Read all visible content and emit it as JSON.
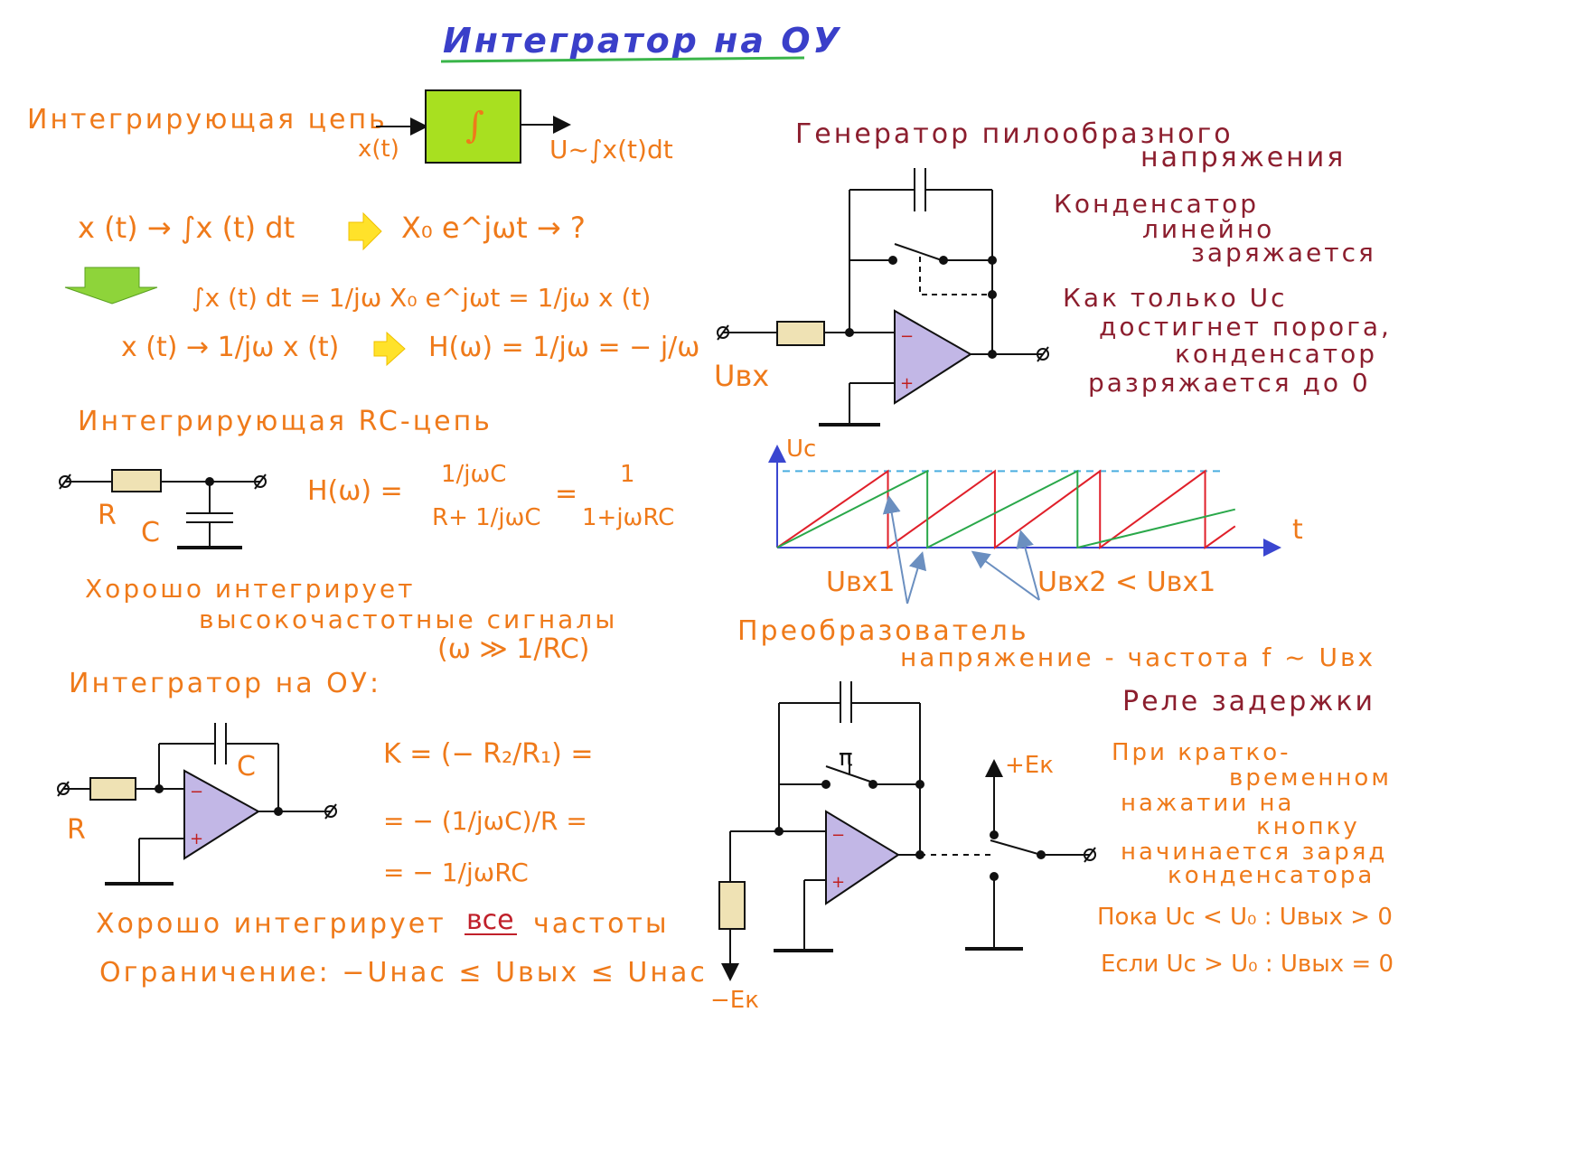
{
  "title": "Интегратор на ОУ",
  "left": {
    "integrating_chain": "Интегрирующая цепь",
    "block_symbol": "∫",
    "input": "x(t)",
    "output": "U~∫x(t)dt",
    "eq1": "x (t) → ∫x (t) dt",
    "eq1_rhs": "X₀ e^jωt → ?",
    "eq2": "∫x (t) dt = 1/jω X₀ e^jωt = 1/jω x (t)",
    "eq3": "x (t) → 1/jω x (t)",
    "eq3_rhs": "H(ω) = 1/jω = − j/ω",
    "rc_chain": "Интегрирующая RC-цепь",
    "r_label": "R",
    "c_label": "C",
    "h_rc_lhs": "H(ω) =",
    "h_rc_num": "1/jωC",
    "h_rc_den": "R+ 1/jωC",
    "h_rc_eq": "=",
    "h_rc_num2": "1",
    "h_rc_den2": "1+jωRC",
    "good1": "Хорошо интегрирует",
    "good2": "высокочастотные сигналы",
    "good3": "(ω ≫ 1/RC)",
    "opamp_title": "Интегратор на ОУ:",
    "opamp_r": "R",
    "opamp_c": "C",
    "k1": "K = (− R₂/R₁) =",
    "k2": "= − (1/jωC)/R =",
    "k3": "= − 1/jωRC",
    "all_freq_1": "Хорошо интегрирует",
    "all_freq_word": "все",
    "all_freq_2": "частоты",
    "limit": "Ограничение: −Uнас ≤ Uвых ≤ Uнас"
  },
  "right": {
    "saw_title_1": "Генератор пилообразного",
    "saw_title_2": "напряжения",
    "cap_note_1": "Конденсатор",
    "cap_note_2": "линейно",
    "cap_note_3": "заряжается",
    "thr_1": "Как только Uc",
    "thr_2": "достигнет порога,",
    "thr_3": "конденсатор",
    "thr_4": "разряжается до 0",
    "uin": "Uвх",
    "axis_y": "Uc",
    "axis_x": "t",
    "uin1": "Uвх1",
    "uin2": "Uвх2 < Uвх1",
    "conv_1": "Преобразователь",
    "conv_2": "напряжение - частота f ~ Uвх",
    "relay_title": "Реле задержки",
    "relay_1": "При кратко-",
    "relay_2": "временном",
    "relay_3": "нажатии на",
    "relay_4": "кнопку",
    "relay_5": "начинается заряд",
    "relay_6": "конденсатора",
    "while": "Пока Uc < U₀ : Uвых > 0",
    "if": "Если Uc > U₀ : Uвых = 0",
    "plus_ek": "+Eк",
    "minus_ek": "−Eк",
    "button_label": "π"
  },
  "chart_data": {
    "type": "line",
    "title": "",
    "xlabel": "t",
    "ylabel": "Uc",
    "threshold": 1.0,
    "series": [
      {
        "name": "Uвх1",
        "color": "#e0202a",
        "x": [
          0,
          2.95,
          2.95,
          5.8,
          5.8,
          8.6,
          8.6,
          11.4,
          11.4,
          12.2
        ],
        "y": [
          0,
          1.0,
          0,
          1.0,
          0,
          1.0,
          0,
          1.0,
          0,
          0.28
        ]
      },
      {
        "name": "Uвх2 < Uвх1",
        "color": "#2aa84a",
        "x": [
          0,
          4.0,
          4.0,
          8.0,
          8.0,
          12.2
        ],
        "y": [
          0,
          1.0,
          0,
          1.0,
          0,
          0.5
        ]
      }
    ],
    "xlim": [
      0,
      13
    ],
    "ylim": [
      0,
      1.3
    ]
  }
}
